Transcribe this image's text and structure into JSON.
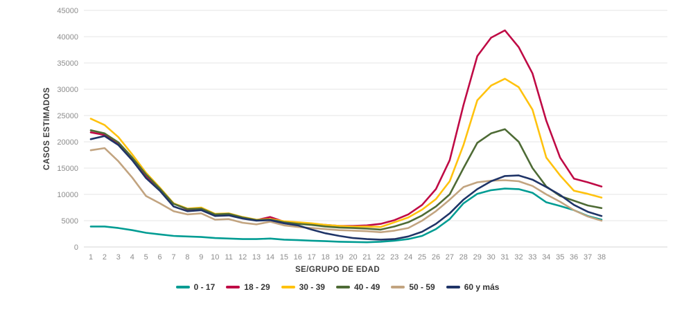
{
  "chart_data": {
    "type": "line",
    "x": [
      1,
      2,
      3,
      4,
      5,
      6,
      7,
      8,
      9,
      10,
      11,
      12,
      13,
      14,
      15,
      16,
      17,
      18,
      19,
      20,
      21,
      22,
      23,
      24,
      25,
      26,
      27,
      28,
      29,
      30,
      31,
      32,
      33,
      34,
      35,
      36,
      37,
      38
    ],
    "xlabel": "SE/GRUPO DE EDAD",
    "ylabel": "CASOS ESTIMADOS",
    "ylim": [
      0,
      45000
    ],
    "ytick_step": 5000,
    "grid": "horizontal",
    "legend_position": "bottom",
    "series": [
      {
        "name": "0 - 17",
        "color": "#009C93",
        "values": [
          3900,
          3900,
          3600,
          3200,
          2700,
          2400,
          2100,
          2000,
          1900,
          1700,
          1600,
          1500,
          1500,
          1600,
          1400,
          1300,
          1200,
          1100,
          1000,
          950,
          900,
          1000,
          1200,
          1500,
          2100,
          3400,
          5300,
          8300,
          10100,
          10800,
          11100,
          11000,
          10300,
          8500,
          7800,
          7000,
          5900,
          5200
        ]
      },
      {
        "name": "18 - 29",
        "color": "#BF0A45",
        "values": [
          21800,
          21300,
          19600,
          16800,
          13500,
          11000,
          8300,
          7100,
          7300,
          6100,
          6200,
          5500,
          5100,
          5700,
          4800,
          4600,
          4400,
          4200,
          4000,
          4000,
          4100,
          4400,
          5100,
          6200,
          8000,
          11000,
          16500,
          27000,
          36300,
          39800,
          41200,
          38000,
          33000,
          24000,
          17000,
          13000,
          12300,
          11500
        ]
      },
      {
        "name": "30 - 39",
        "color": "#FFC20E",
        "values": [
          24400,
          23200,
          20900,
          17600,
          14100,
          11300,
          8300,
          7300,
          7500,
          6300,
          6400,
          5700,
          5200,
          5300,
          4900,
          4700,
          4500,
          4200,
          4000,
          3900,
          3900,
          3800,
          4700,
          5600,
          7100,
          9100,
          12500,
          19400,
          27900,
          30700,
          32000,
          30400,
          26100,
          17000,
          13600,
          10700,
          10100,
          9400
        ]
      },
      {
        "name": "40 - 49",
        "color": "#4E6B35",
        "values": [
          22200,
          21600,
          19900,
          17000,
          13800,
          11100,
          8200,
          7200,
          7300,
          6200,
          6300,
          5600,
          5100,
          5200,
          4700,
          4400,
          4200,
          3900,
          3700,
          3600,
          3500,
          3300,
          3900,
          4700,
          6000,
          7700,
          10000,
          15000,
          19800,
          21600,
          22400,
          20000,
          15000,
          11500,
          9700,
          8800,
          7900,
          7400
        ]
      },
      {
        "name": "50 - 59",
        "color": "#C2A480",
        "values": [
          18400,
          18800,
          16300,
          13200,
          9700,
          8300,
          6800,
          6200,
          6400,
          5200,
          5300,
          4600,
          4300,
          4800,
          4100,
          3800,
          3600,
          3400,
          3200,
          3100,
          3000,
          2800,
          3100,
          3600,
          5000,
          6800,
          9000,
          11400,
          12300,
          12600,
          12700,
          12500,
          11600,
          10000,
          8600,
          7000,
          5800,
          5000
        ]
      },
      {
        "name": "60 y más",
        "color": "#1F3467",
        "values": [
          20500,
          21100,
          19400,
          16500,
          13100,
          10700,
          7700,
          6800,
          7000,
          5900,
          6000,
          5400,
          5000,
          5100,
          4500,
          4100,
          3300,
          2600,
          2100,
          1700,
          1500,
          1400,
          1500,
          2000,
          2900,
          4400,
          6400,
          9000,
          11000,
          12500,
          13500,
          13600,
          12800,
          11400,
          9900,
          8000,
          6700,
          5900
        ]
      }
    ]
  }
}
